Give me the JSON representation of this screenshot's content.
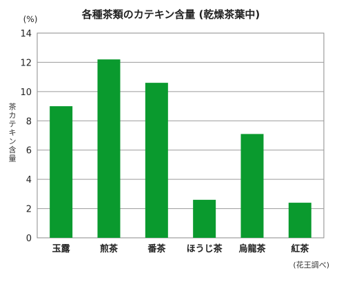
{
  "chart_data": {
    "type": "bar",
    "title": "各種茶類のカテキン含量 (乾燥茶葉中)",
    "unit": "(%)",
    "ylabel": "茶カテキン含量",
    "xlabel": "",
    "categories": [
      "玉露",
      "煎茶",
      "番茶",
      "ほうじ茶",
      "烏龍茶",
      "紅茶"
    ],
    "values": [
      9.0,
      12.2,
      10.6,
      2.6,
      7.1,
      2.4
    ],
    "ylim": [
      0,
      14
    ],
    "yticks": [
      0,
      2,
      4,
      6,
      8,
      10,
      12,
      14
    ],
    "grid": true,
    "bar_color": "#0a9a2e",
    "source": "(花王調べ)"
  }
}
